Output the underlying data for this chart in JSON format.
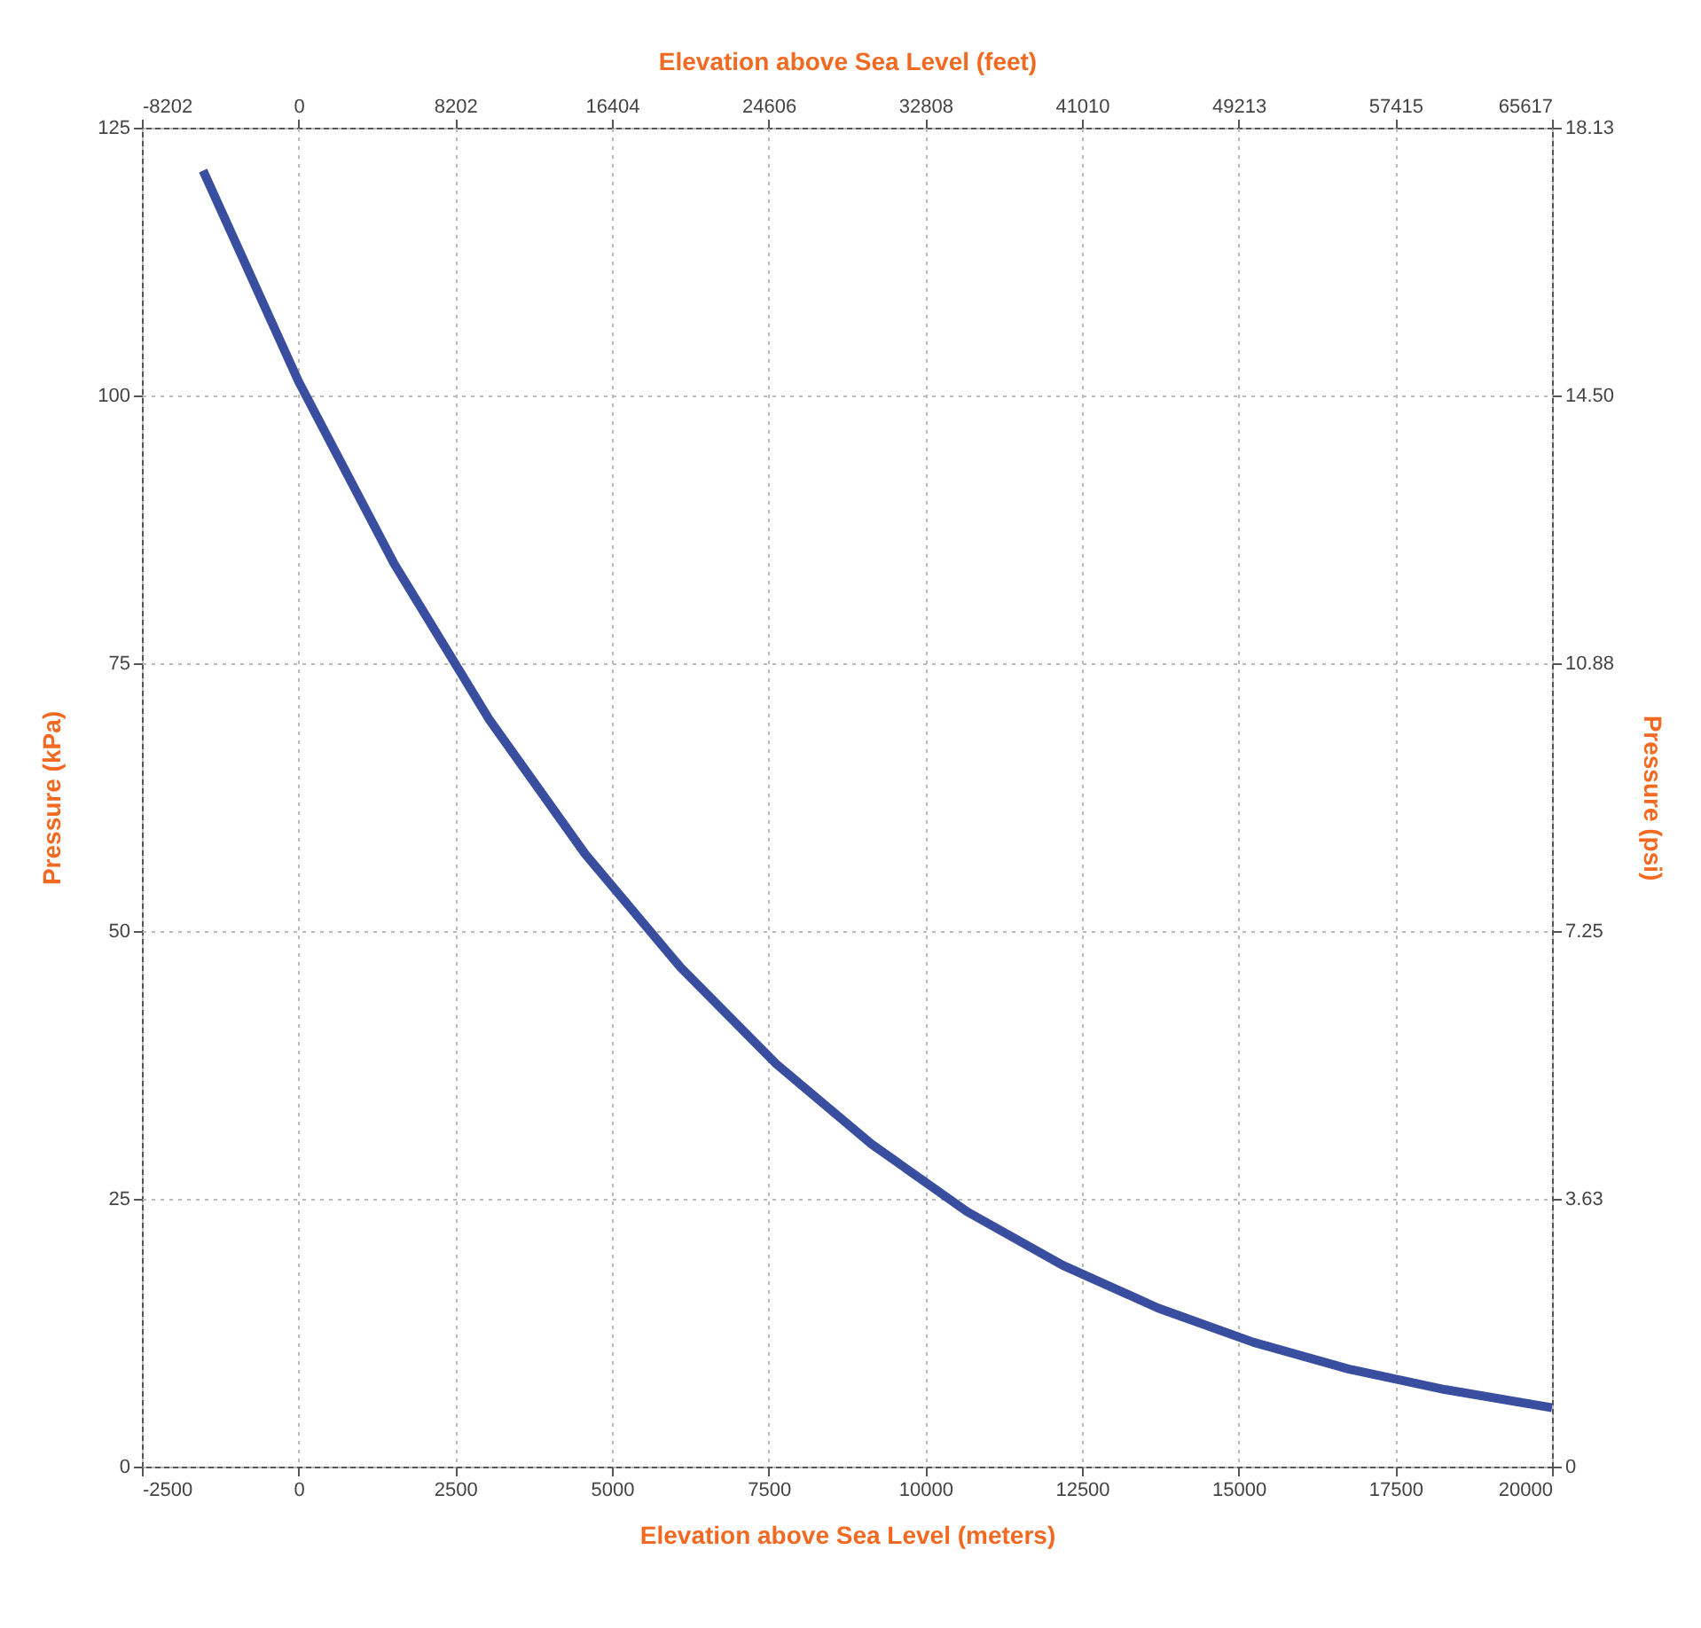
{
  "chart_data": {
    "type": "line",
    "xlabel": "Elevation above Sea Level (meters)",
    "ylabel": "Pressure (kPa)",
    "x2label": "Elevation above Sea Level (feet)",
    "y2label": "Pressure (psi)",
    "x": [
      -1524,
      0,
      1524,
      3048,
      4572,
      6096,
      7620,
      9144,
      10668,
      12192,
      13716,
      15240,
      16764,
      18288,
      20000
    ],
    "series": [
      {
        "color": "#3a4ea0",
        "values": [
          121.0,
          101.3,
          84.3,
          69.7,
          57.2,
          46.6,
          37.6,
          30.1,
          23.8,
          18.8,
          14.8,
          11.6,
          9.1,
          7.2,
          5.5
        ]
      }
    ],
    "xlim": [
      -2500,
      20000
    ],
    "xticks": [
      -2500,
      0,
      2500,
      5000,
      7500,
      10000,
      12500,
      15000,
      17500,
      20000
    ],
    "ylim": [
      0,
      125
    ],
    "yticks": [
      0,
      25,
      50,
      75,
      100,
      125
    ],
    "x2lim": [
      -8202,
      65617
    ],
    "x2ticks": [
      -8202,
      0,
      8202,
      16404,
      24606,
      32808,
      41010,
      49213,
      57415,
      65617
    ],
    "y2lim": [
      0,
      18.13
    ],
    "y2ticks": [
      0,
      3.63,
      7.25,
      10.88,
      {
        "value": 14.5,
        "label": "14.50"
      },
      18.13
    ],
    "grid": true
  }
}
